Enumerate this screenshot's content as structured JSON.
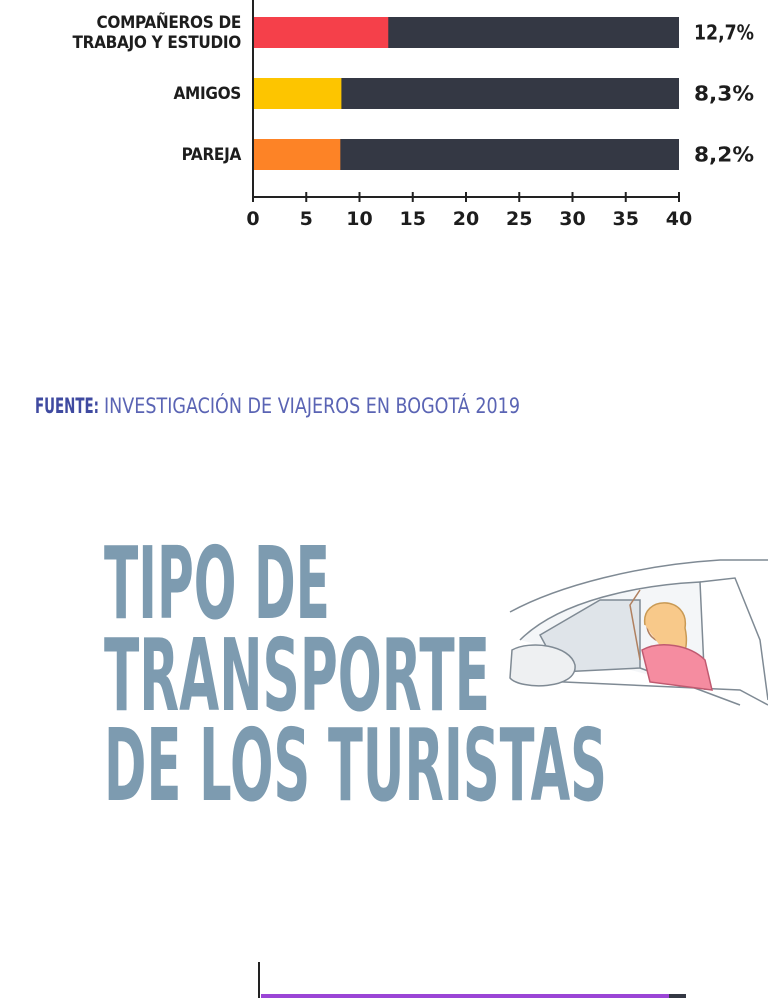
{
  "chart_data": {
    "type": "barh",
    "categories": [
      "COMPAÑEROS DE TRABAJO Y ESTUDIO",
      "AMIGOS",
      "PAREJA"
    ],
    "values": [
      12.7,
      8.3,
      8.2
    ],
    "value_labels": [
      "12,7%",
      "8,3%",
      "8,2%"
    ],
    "colors": [
      "#f5404a",
      "#fdc500",
      "#fd8326"
    ],
    "track_color": "#343844",
    "xlim": [
      0,
      40
    ],
    "xticks": [
      0,
      5,
      10,
      15,
      20,
      25,
      30,
      35,
      40
    ]
  },
  "source": {
    "label": "FUENTE:",
    "text": "INVESTIGACIÓN DE VIAJEROS EN BOGOTÁ 2019"
  },
  "heading": {
    "lines": [
      "TIPO DE",
      "TRANSPORTE",
      "DE LOS TURISTAS"
    ]
  }
}
